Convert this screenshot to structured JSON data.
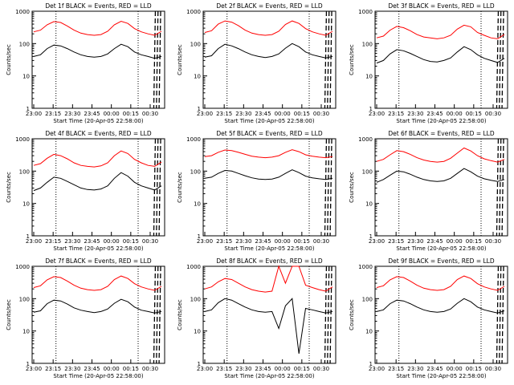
{
  "chart_data": [
    {
      "type": "line",
      "title": "Det 1f BLACK = Events, RED = LLD",
      "ylabel": "Counts/sec",
      "xlabel": "Start Time (20-Apr-05 22:58:00)",
      "x_tick_labels": [
        "23:00",
        "23:15",
        "23:30",
        "23:45",
        "00:00",
        "00:15",
        "00:30"
      ],
      "y_scale": "log",
      "ylim": [
        1,
        1000
      ],
      "y_tick_labels": [
        "1",
        "10",
        "100",
        "1000"
      ],
      "series": [
        {
          "name": "Events",
          "color": "#000000",
          "x": [
            0,
            5,
            10,
            15,
            20,
            25,
            30,
            35,
            40,
            45,
            50,
            55,
            60,
            65,
            70,
            75,
            80,
            85,
            90,
            95
          ],
          "y": [
            40,
            45,
            70,
            90,
            85,
            70,
            55,
            45,
            40,
            38,
            40,
            48,
            70,
            95,
            80,
            55,
            45,
            40,
            35,
            40
          ]
        },
        {
          "name": "LLD",
          "color": "#ff0000",
          "x": [
            0,
            5,
            10,
            15,
            20,
            25,
            30,
            35,
            40,
            45,
            50,
            55,
            60,
            65,
            70,
            75,
            80,
            85,
            90,
            95
          ],
          "y": [
            230,
            260,
            380,
            480,
            450,
            350,
            260,
            210,
            190,
            180,
            190,
            240,
            380,
            490,
            420,
            290,
            230,
            200,
            180,
            240
          ]
        }
      ]
    },
    {
      "type": "line",
      "title": "Det 2f BLACK = Events, RED = LLD",
      "ylabel": "Counts/sec",
      "xlabel": "Start Time (20-Apr-05 22:58:00)",
      "x_tick_labels": [
        "23:00",
        "23:15",
        "23:30",
        "23:45",
        "00:00",
        "00:15",
        "00:30"
      ],
      "y_scale": "log",
      "ylim": [
        1,
        1000
      ],
      "y_tick_labels": [
        "1",
        "10",
        "100",
        "1000"
      ],
      "series": [
        {
          "name": "Events",
          "color": "#000000",
          "x": [
            0,
            5,
            10,
            15,
            20,
            25,
            30,
            35,
            40,
            45,
            50,
            55,
            60,
            65,
            70,
            75,
            80,
            85,
            90,
            95
          ],
          "y": [
            38,
            42,
            70,
            95,
            85,
            70,
            55,
            45,
            40,
            37,
            40,
            48,
            72,
            100,
            80,
            55,
            45,
            40,
            36,
            40
          ]
        },
        {
          "name": "LLD",
          "color": "#ff0000",
          "x": [
            0,
            5,
            10,
            15,
            20,
            25,
            30,
            35,
            40,
            45,
            50,
            55,
            60,
            65,
            70,
            75,
            80,
            85,
            90,
            95
          ],
          "y": [
            220,
            250,
            400,
            500,
            460,
            360,
            260,
            210,
            190,
            180,
            190,
            240,
            390,
            500,
            420,
            290,
            230,
            200,
            180,
            240
          ]
        }
      ]
    },
    {
      "type": "line",
      "title": "Det 3f BLACK = Events, RED = LLD",
      "ylabel": "Counts/sec",
      "xlabel": "Start Time (20-Apr-05 22:58:00)",
      "x_tick_labels": [
        "23:00",
        "23:15",
        "23:30",
        "23:45",
        "00:00",
        "00:15",
        "00:30"
      ],
      "y_scale": "log",
      "ylim": [
        1,
        1000
      ],
      "y_tick_labels": [
        "1",
        "10",
        "100",
        "1000"
      ],
      "series": [
        {
          "name": "Events",
          "color": "#000000",
          "x": [
            0,
            5,
            10,
            15,
            20,
            25,
            30,
            35,
            40,
            45,
            50,
            55,
            60,
            65,
            70,
            75,
            80,
            85,
            90,
            95
          ],
          "y": [
            25,
            30,
            48,
            65,
            60,
            50,
            40,
            32,
            28,
            27,
            30,
            36,
            55,
            80,
            65,
            45,
            35,
            30,
            26,
            35
          ]
        },
        {
          "name": "LLD",
          "color": "#ff0000",
          "x": [
            0,
            5,
            10,
            15,
            20,
            25,
            30,
            35,
            40,
            45,
            50,
            55,
            60,
            65,
            70,
            75,
            80,
            85,
            90,
            95
          ],
          "y": [
            150,
            170,
            260,
            340,
            310,
            250,
            190,
            160,
            150,
            140,
            150,
            180,
            280,
            370,
            330,
            220,
            180,
            150,
            140,
            190
          ]
        }
      ]
    },
    {
      "type": "line",
      "title": "Det 4f BLACK = Events, RED = LLD",
      "ylabel": "Counts/sec",
      "xlabel": "Start Time (20-Apr-05 22:58:00)",
      "x_tick_labels": [
        "23:00",
        "23:15",
        "23:30",
        "23:45",
        "00:00",
        "00:15",
        "00:30"
      ],
      "y_scale": "log",
      "ylim": [
        1,
        1000
      ],
      "y_tick_labels": [
        "1",
        "10",
        "100",
        "1000"
      ],
      "series": [
        {
          "name": "Events",
          "color": "#000000",
          "x": [
            0,
            5,
            10,
            15,
            20,
            25,
            30,
            35,
            40,
            45,
            50,
            55,
            60,
            65,
            70,
            75,
            80,
            85,
            90,
            95
          ],
          "y": [
            25,
            30,
            45,
            65,
            60,
            48,
            38,
            30,
            27,
            26,
            28,
            35,
            60,
            90,
            70,
            45,
            35,
            30,
            26,
            35
          ]
        },
        {
          "name": "LLD",
          "color": "#ff0000",
          "x": [
            0,
            5,
            10,
            15,
            20,
            25,
            30,
            35,
            40,
            45,
            50,
            55,
            60,
            65,
            70,
            75,
            80,
            85,
            90,
            95
          ],
          "y": [
            150,
            170,
            250,
            330,
            300,
            240,
            180,
            150,
            140,
            135,
            145,
            180,
            300,
            420,
            350,
            230,
            180,
            150,
            140,
            190
          ]
        }
      ]
    },
    {
      "type": "line",
      "title": "Det 5f BLACK = Events, RED = LLD",
      "ylabel": "Counts/sec",
      "xlabel": "Start Time (20-Apr-05 22:58:00)",
      "x_tick_labels": [
        "23:00",
        "23:15",
        "23:30",
        "23:45",
        "00:00",
        "00:15",
        "00:30"
      ],
      "y_scale": "log",
      "ylim": [
        1,
        1000
      ],
      "y_tick_labels": [
        "1",
        "10",
        "100",
        "1000"
      ],
      "series": [
        {
          "name": "Events",
          "color": "#000000",
          "x": [
            0,
            5,
            10,
            15,
            20,
            25,
            30,
            35,
            40,
            45,
            50,
            55,
            60,
            65,
            70,
            75,
            80,
            85,
            90,
            95
          ],
          "y": [
            60,
            65,
            85,
            105,
            100,
            85,
            72,
            62,
            57,
            55,
            57,
            65,
            85,
            110,
            90,
            70,
            62,
            58,
            55,
            60
          ]
        },
        {
          "name": "LLD",
          "color": "#ff0000",
          "x": [
            0,
            5,
            10,
            15,
            20,
            25,
            30,
            35,
            40,
            45,
            50,
            55,
            60,
            65,
            70,
            75,
            80,
            85,
            90,
            95
          ],
          "y": [
            280,
            300,
            380,
            450,
            430,
            380,
            330,
            290,
            270,
            260,
            270,
            300,
            380,
            460,
            400,
            320,
            290,
            270,
            260,
            280
          ]
        }
      ]
    },
    {
      "type": "line",
      "title": "Det 6f BLACK = Events, RED = LLD",
      "ylabel": "Counts/sec",
      "xlabel": "Start Time (20-Apr-05 22:58:00)",
      "x_tick_labels": [
        "23:00",
        "23:15",
        "23:30",
        "23:45",
        "00:00",
        "00:15",
        "00:30"
      ],
      "y_scale": "log",
      "ylim": [
        1,
        1000
      ],
      "y_tick_labels": [
        "1",
        "10",
        "100",
        "1000"
      ],
      "series": [
        {
          "name": "Events",
          "color": "#000000",
          "x": [
            0,
            5,
            10,
            15,
            20,
            25,
            30,
            35,
            40,
            45,
            50,
            55,
            60,
            65,
            70,
            75,
            80,
            85,
            90,
            95
          ],
          "y": [
            45,
            55,
            75,
            100,
            95,
            80,
            65,
            55,
            50,
            48,
            50,
            60,
            85,
            120,
            95,
            70,
            58,
            52,
            48,
            55
          ]
        },
        {
          "name": "LLD",
          "color": "#ff0000",
          "x": [
            0,
            5,
            10,
            15,
            20,
            25,
            30,
            35,
            40,
            45,
            50,
            55,
            60,
            65,
            70,
            75,
            80,
            85,
            90,
            95
          ],
          "y": [
            200,
            230,
            320,
            430,
            400,
            330,
            260,
            220,
            200,
            190,
            200,
            250,
            360,
            520,
            420,
            300,
            240,
            210,
            190,
            230
          ]
        }
      ]
    },
    {
      "type": "line",
      "title": "Det 7f BLACK = Events, RED = LLD",
      "ylabel": "Counts/sec",
      "xlabel": "Start Time (20-Apr-05 22:58:00)",
      "x_tick_labels": [
        "23:00",
        "23:15",
        "23:30",
        "23:45",
        "00:00",
        "00:15",
        "00:30"
      ],
      "y_scale": "log",
      "ylim": [
        1,
        1000
      ],
      "y_tick_labels": [
        "1",
        "10",
        "100",
        "1000"
      ],
      "series": [
        {
          "name": "Events",
          "color": "#000000",
          "x": [
            0,
            5,
            10,
            15,
            20,
            25,
            30,
            35,
            40,
            45,
            50,
            55,
            60,
            65,
            70,
            75,
            80,
            85,
            90,
            95
          ],
          "y": [
            38,
            42,
            70,
            90,
            85,
            68,
            52,
            44,
            40,
            37,
            40,
            48,
            72,
            95,
            80,
            55,
            44,
            40,
            36,
            40
          ]
        },
        {
          "name": "LLD",
          "color": "#ff0000",
          "x": [
            0,
            5,
            10,
            15,
            20,
            25,
            30,
            35,
            40,
            45,
            50,
            55,
            60,
            65,
            70,
            75,
            80,
            85,
            90,
            95
          ],
          "y": [
            220,
            250,
            380,
            480,
            450,
            350,
            260,
            210,
            190,
            180,
            190,
            240,
            390,
            500,
            420,
            290,
            230,
            200,
            180,
            240
          ]
        }
      ]
    },
    {
      "type": "line",
      "title": "Det 8f BLACK = Events, RED = LLD",
      "ylabel": "Counts/sec",
      "xlabel": "Start Time (20-Apr-05 22:58:00)",
      "x_tick_labels": [
        "23:00",
        "23:15",
        "23:30",
        "23:45",
        "00:00",
        "00:15",
        "00:30"
      ],
      "y_scale": "log",
      "ylim": [
        1,
        1000
      ],
      "y_tick_labels": [
        "1",
        "10",
        "100",
        "1000"
      ],
      "series": [
        {
          "name": "Events",
          "color": "#000000",
          "x": [
            0,
            5,
            10,
            15,
            20,
            25,
            30,
            35,
            40,
            45,
            50,
            55,
            60,
            65,
            70,
            75,
            80,
            85,
            90,
            95
          ],
          "y": [
            40,
            45,
            75,
            100,
            90,
            70,
            55,
            45,
            40,
            38,
            40,
            12,
            60,
            100,
            2,
            50,
            45,
            40,
            36,
            40
          ]
        },
        {
          "name": "LLD",
          "color": "#ff0000",
          "x": [
            0,
            5,
            10,
            15,
            20,
            25,
            30,
            35,
            40,
            45,
            50,
            55,
            60,
            65,
            70,
            75,
            80,
            85,
            90,
            95
          ],
          "y": [
            200,
            230,
            330,
            420,
            390,
            300,
            230,
            190,
            170,
            160,
            170,
            1000,
            300,
            1000,
            1000,
            260,
            220,
            190,
            170,
            230
          ]
        }
      ]
    },
    {
      "type": "line",
      "title": "Det 9f BLACK = Events, RED = LLD",
      "ylabel": "Counts/sec",
      "xlabel": "Start Time (20-Apr-05 22:58:00)",
      "x_tick_labels": [
        "23:00",
        "23:15",
        "23:30",
        "23:45",
        "00:00",
        "00:15",
        "00:30"
      ],
      "y_scale": "log",
      "ylim": [
        1,
        1000
      ],
      "y_tick_labels": [
        "1",
        "10",
        "100",
        "1000"
      ],
      "series": [
        {
          "name": "Events",
          "color": "#000000",
          "x": [
            0,
            5,
            10,
            15,
            20,
            25,
            30,
            35,
            40,
            45,
            50,
            55,
            60,
            65,
            70,
            75,
            80,
            85,
            90,
            95
          ],
          "y": [
            40,
            45,
            70,
            90,
            85,
            70,
            55,
            45,
            40,
            38,
            40,
            48,
            72,
            100,
            80,
            55,
            45,
            40,
            36,
            42
          ]
        },
        {
          "name": "LLD",
          "color": "#ff0000",
          "x": [
            0,
            5,
            10,
            15,
            20,
            25,
            30,
            35,
            40,
            45,
            50,
            55,
            60,
            65,
            70,
            75,
            80,
            85,
            90,
            95
          ],
          "y": [
            220,
            250,
            380,
            480,
            450,
            350,
            260,
            210,
            190,
            180,
            190,
            240,
            390,
            500,
            420,
            290,
            230,
            200,
            180,
            240
          ]
        }
      ]
    }
  ]
}
